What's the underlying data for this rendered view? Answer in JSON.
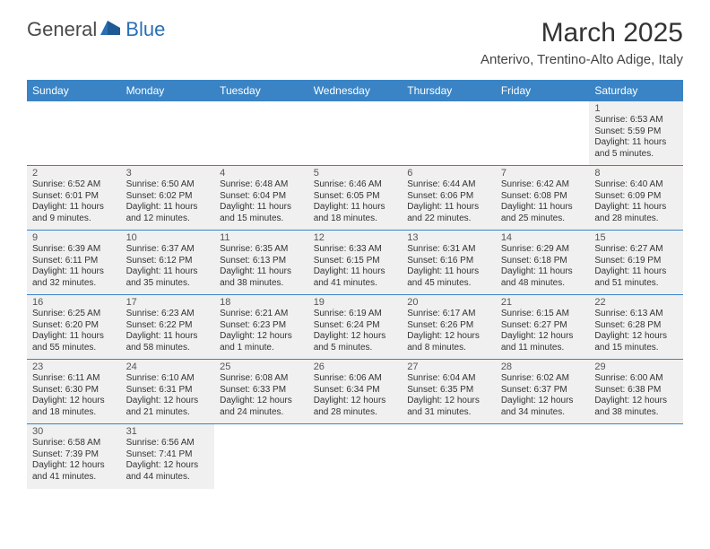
{
  "logo": {
    "general": "General",
    "blue": "Blue"
  },
  "title": "March 2025",
  "location": "Anterivo, Trentino-Alto Adige, Italy",
  "colors": {
    "header_bg": "#3a84c5",
    "border": "#3a84c5",
    "shaded_bg": "#f0f0f0",
    "text": "#333333",
    "logo_gray": "#4a4a4a",
    "logo_blue": "#2a6fb5"
  },
  "fonts": {
    "title_size": 30,
    "location_size": 15,
    "header_size": 12,
    "daynum_size": 11,
    "info_size": 10
  },
  "day_headers": [
    "Sunday",
    "Monday",
    "Tuesday",
    "Wednesday",
    "Thursday",
    "Friday",
    "Saturday"
  ],
  "weeks": [
    [
      {
        "empty": true
      },
      {
        "empty": true
      },
      {
        "empty": true
      },
      {
        "empty": true
      },
      {
        "empty": true
      },
      {
        "empty": true
      },
      {
        "num": "1",
        "sunrise": "Sunrise: 6:53 AM",
        "sunset": "Sunset: 5:59 PM",
        "daylight1": "Daylight: 11 hours",
        "daylight2": "and 5 minutes."
      }
    ],
    [
      {
        "num": "2",
        "sunrise": "Sunrise: 6:52 AM",
        "sunset": "Sunset: 6:01 PM",
        "daylight1": "Daylight: 11 hours",
        "daylight2": "and 9 minutes."
      },
      {
        "num": "3",
        "sunrise": "Sunrise: 6:50 AM",
        "sunset": "Sunset: 6:02 PM",
        "daylight1": "Daylight: 11 hours",
        "daylight2": "and 12 minutes."
      },
      {
        "num": "4",
        "sunrise": "Sunrise: 6:48 AM",
        "sunset": "Sunset: 6:04 PM",
        "daylight1": "Daylight: 11 hours",
        "daylight2": "and 15 minutes."
      },
      {
        "num": "5",
        "sunrise": "Sunrise: 6:46 AM",
        "sunset": "Sunset: 6:05 PM",
        "daylight1": "Daylight: 11 hours",
        "daylight2": "and 18 minutes."
      },
      {
        "num": "6",
        "sunrise": "Sunrise: 6:44 AM",
        "sunset": "Sunset: 6:06 PM",
        "daylight1": "Daylight: 11 hours",
        "daylight2": "and 22 minutes."
      },
      {
        "num": "7",
        "sunrise": "Sunrise: 6:42 AM",
        "sunset": "Sunset: 6:08 PM",
        "daylight1": "Daylight: 11 hours",
        "daylight2": "and 25 minutes."
      },
      {
        "num": "8",
        "sunrise": "Sunrise: 6:40 AM",
        "sunset": "Sunset: 6:09 PM",
        "daylight1": "Daylight: 11 hours",
        "daylight2": "and 28 minutes."
      }
    ],
    [
      {
        "num": "9",
        "sunrise": "Sunrise: 6:39 AM",
        "sunset": "Sunset: 6:11 PM",
        "daylight1": "Daylight: 11 hours",
        "daylight2": "and 32 minutes."
      },
      {
        "num": "10",
        "sunrise": "Sunrise: 6:37 AM",
        "sunset": "Sunset: 6:12 PM",
        "daylight1": "Daylight: 11 hours",
        "daylight2": "and 35 minutes."
      },
      {
        "num": "11",
        "sunrise": "Sunrise: 6:35 AM",
        "sunset": "Sunset: 6:13 PM",
        "daylight1": "Daylight: 11 hours",
        "daylight2": "and 38 minutes."
      },
      {
        "num": "12",
        "sunrise": "Sunrise: 6:33 AM",
        "sunset": "Sunset: 6:15 PM",
        "daylight1": "Daylight: 11 hours",
        "daylight2": "and 41 minutes."
      },
      {
        "num": "13",
        "sunrise": "Sunrise: 6:31 AM",
        "sunset": "Sunset: 6:16 PM",
        "daylight1": "Daylight: 11 hours",
        "daylight2": "and 45 minutes."
      },
      {
        "num": "14",
        "sunrise": "Sunrise: 6:29 AM",
        "sunset": "Sunset: 6:18 PM",
        "daylight1": "Daylight: 11 hours",
        "daylight2": "and 48 minutes."
      },
      {
        "num": "15",
        "sunrise": "Sunrise: 6:27 AM",
        "sunset": "Sunset: 6:19 PM",
        "daylight1": "Daylight: 11 hours",
        "daylight2": "and 51 minutes."
      }
    ],
    [
      {
        "num": "16",
        "sunrise": "Sunrise: 6:25 AM",
        "sunset": "Sunset: 6:20 PM",
        "daylight1": "Daylight: 11 hours",
        "daylight2": "and 55 minutes."
      },
      {
        "num": "17",
        "sunrise": "Sunrise: 6:23 AM",
        "sunset": "Sunset: 6:22 PM",
        "daylight1": "Daylight: 11 hours",
        "daylight2": "and 58 minutes."
      },
      {
        "num": "18",
        "sunrise": "Sunrise: 6:21 AM",
        "sunset": "Sunset: 6:23 PM",
        "daylight1": "Daylight: 12 hours",
        "daylight2": "and 1 minute."
      },
      {
        "num": "19",
        "sunrise": "Sunrise: 6:19 AM",
        "sunset": "Sunset: 6:24 PM",
        "daylight1": "Daylight: 12 hours",
        "daylight2": "and 5 minutes."
      },
      {
        "num": "20",
        "sunrise": "Sunrise: 6:17 AM",
        "sunset": "Sunset: 6:26 PM",
        "daylight1": "Daylight: 12 hours",
        "daylight2": "and 8 minutes."
      },
      {
        "num": "21",
        "sunrise": "Sunrise: 6:15 AM",
        "sunset": "Sunset: 6:27 PM",
        "daylight1": "Daylight: 12 hours",
        "daylight2": "and 11 minutes."
      },
      {
        "num": "22",
        "sunrise": "Sunrise: 6:13 AM",
        "sunset": "Sunset: 6:28 PM",
        "daylight1": "Daylight: 12 hours",
        "daylight2": "and 15 minutes."
      }
    ],
    [
      {
        "num": "23",
        "sunrise": "Sunrise: 6:11 AM",
        "sunset": "Sunset: 6:30 PM",
        "daylight1": "Daylight: 12 hours",
        "daylight2": "and 18 minutes."
      },
      {
        "num": "24",
        "sunrise": "Sunrise: 6:10 AM",
        "sunset": "Sunset: 6:31 PM",
        "daylight1": "Daylight: 12 hours",
        "daylight2": "and 21 minutes."
      },
      {
        "num": "25",
        "sunrise": "Sunrise: 6:08 AM",
        "sunset": "Sunset: 6:33 PM",
        "daylight1": "Daylight: 12 hours",
        "daylight2": "and 24 minutes."
      },
      {
        "num": "26",
        "sunrise": "Sunrise: 6:06 AM",
        "sunset": "Sunset: 6:34 PM",
        "daylight1": "Daylight: 12 hours",
        "daylight2": "and 28 minutes."
      },
      {
        "num": "27",
        "sunrise": "Sunrise: 6:04 AM",
        "sunset": "Sunset: 6:35 PM",
        "daylight1": "Daylight: 12 hours",
        "daylight2": "and 31 minutes."
      },
      {
        "num": "28",
        "sunrise": "Sunrise: 6:02 AM",
        "sunset": "Sunset: 6:37 PM",
        "daylight1": "Daylight: 12 hours",
        "daylight2": "and 34 minutes."
      },
      {
        "num": "29",
        "sunrise": "Sunrise: 6:00 AM",
        "sunset": "Sunset: 6:38 PM",
        "daylight1": "Daylight: 12 hours",
        "daylight2": "and 38 minutes."
      }
    ],
    [
      {
        "num": "30",
        "sunrise": "Sunrise: 6:58 AM",
        "sunset": "Sunset: 7:39 PM",
        "daylight1": "Daylight: 12 hours",
        "daylight2": "and 41 minutes."
      },
      {
        "num": "31",
        "sunrise": "Sunrise: 6:56 AM",
        "sunset": "Sunset: 7:41 PM",
        "daylight1": "Daylight: 12 hours",
        "daylight2": "and 44 minutes."
      },
      {
        "empty": true
      },
      {
        "empty": true
      },
      {
        "empty": true
      },
      {
        "empty": true
      },
      {
        "empty": true
      }
    ]
  ]
}
